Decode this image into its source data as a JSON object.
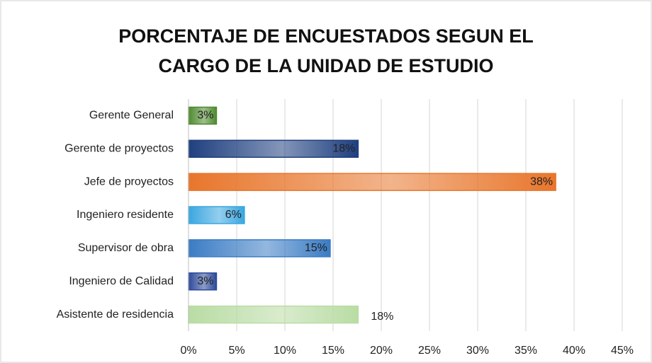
{
  "chart_data": {
    "type": "barh",
    "title": "PORCENTAJE DE ENCUESTADOS SEGUN EL CARGO DE LA UNIDAD DE ESTUDIO",
    "categories": [
      "Gerente General",
      "Gerente de proyectos",
      "Jefe de proyectos",
      "Ingeniero residente",
      "Supervisor de obra",
      "Ingeniero de Calidad",
      "Asistente de residencia"
    ],
    "values": [
      2.9,
      17.6,
      38.1,
      5.8,
      14.7,
      2.9,
      17.6
    ],
    "value_labels": [
      "3%",
      "18%",
      "38%",
      "6%",
      "15%",
      "3%",
      "18%"
    ],
    "colors": [
      "#4e8a2e",
      "#1f3f7f",
      "#e8762c",
      "#3aa6e0",
      "#3b7cc4",
      "#2d4a9a",
      "#b9dca4"
    ],
    "xlim": [
      0,
      45
    ],
    "xticks": [
      {
        "value": 0,
        "label": "0%"
      },
      {
        "value": 5,
        "label": "5%"
      },
      {
        "value": 10,
        "label": "10%"
      },
      {
        "value": 15,
        "label": "15%"
      },
      {
        "value": 20,
        "label": "20%"
      },
      {
        "value": 25,
        "label": "25%"
      },
      {
        "value": 30,
        "label": "30%"
      },
      {
        "value": 35,
        "label": "35%"
      },
      {
        "value": 40,
        "label": "40%"
      },
      {
        "value": 45,
        "label": "45%"
      }
    ],
    "grid": true
  }
}
